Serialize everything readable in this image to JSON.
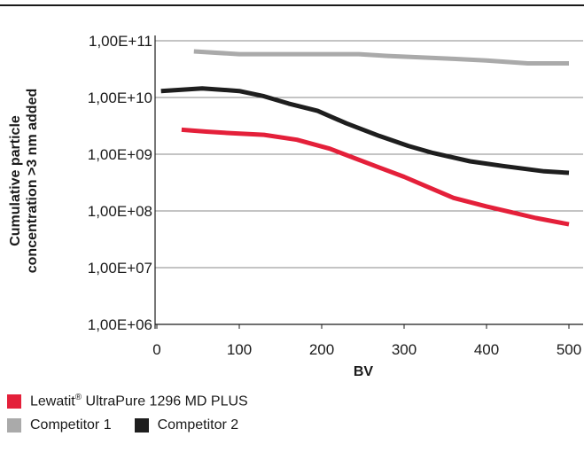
{
  "chart_data": {
    "type": "line",
    "xlabel": "BV",
    "ylabel_lines": [
      "Cumulative particle",
      "concentration >3 nm added"
    ],
    "xlim": [
      0,
      510
    ],
    "ylim": [
      1000000,
      100000000000
    ],
    "y_scale": "log",
    "x_ticks": [
      "0",
      "100",
      "200",
      "300",
      "400",
      "500"
    ],
    "y_ticks": [
      "1,00E+06",
      "1,00E+07",
      "1,00E+08",
      "1,00E+09",
      "1,00E+10",
      "1,00E+11"
    ],
    "grid": "horizontal",
    "legend_position": "bottom-left",
    "series": [
      {
        "name": "Lewatit® UltraPure 1296 MD PLUS",
        "color": "#e4203a",
        "x": [
          30,
          60,
          90,
          130,
          170,
          210,
          240,
          270,
          300,
          330,
          360,
          400,
          430,
          460,
          500
        ],
        "y": [
          2700000000,
          2500000000,
          2350000000,
          2200000000,
          1800000000,
          1250000000,
          850000000,
          580000000,
          400000000,
          260000000,
          170000000,
          120000000,
          95000000,
          75000000,
          58000000
        ]
      },
      {
        "name": "Competitor 1",
        "color": "#aaaaaa",
        "x": [
          45,
          100,
          150,
          200,
          245,
          280,
          320,
          360,
          400,
          450,
          500
        ],
        "y": [
          65000000000,
          58000000000,
          58000000000,
          58000000000,
          58000000000,
          54000000000,
          51000000000,
          48000000000,
          45000000000,
          40000000000,
          40000000000
        ]
      },
      {
        "name": "Competitor 2",
        "color": "#1e1e1e",
        "x": [
          5,
          55,
          100,
          130,
          160,
          195,
          230,
          270,
          305,
          335,
          380,
          420,
          470,
          500
        ],
        "y": [
          13000000000,
          14500000000,
          13000000000,
          10500000000,
          7800000000,
          5800000000,
          3500000000,
          2100000000,
          1400000000,
          1050000000,
          750000000,
          620000000,
          500000000,
          470000000
        ]
      }
    ]
  },
  "legend": {
    "row1": [
      {
        "label": "Lewatit",
        "reg": "®",
        "rest": " UltraPure 1296 MD PLUS",
        "color": "#e4203a"
      }
    ],
    "row2": [
      {
        "label": "Competitor 1",
        "color": "#aaaaaa"
      },
      {
        "label": "Competitor 2",
        "color": "#1e1e1e"
      }
    ]
  }
}
